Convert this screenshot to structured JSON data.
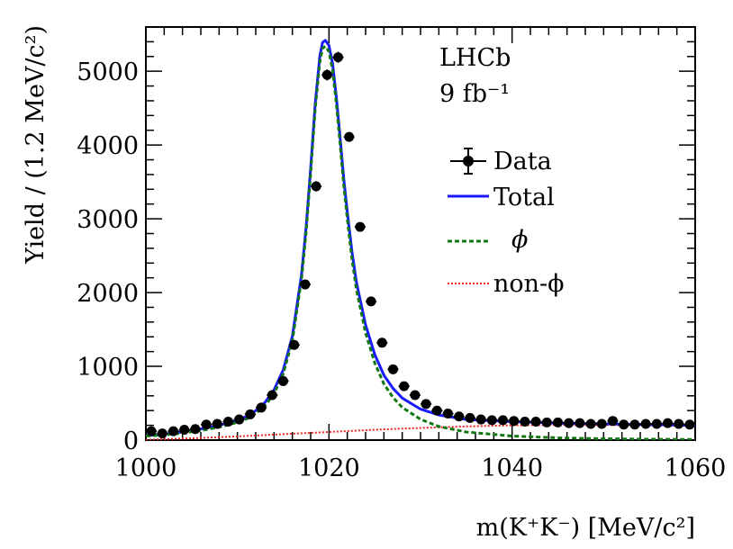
{
  "chart_data": {
    "type": "scatter",
    "title": "",
    "xlabel": "m(K⁺K⁻) [MeV/c²]",
    "ylabel": "Yield / (1.2 MeV/c²)",
    "xlim": [
      1000,
      1060
    ],
    "ylim": [
      0,
      5600
    ],
    "x_ticks": [
      1000,
      1020,
      1040,
      1060
    ],
    "y_ticks": [
      0,
      1000,
      2000,
      3000,
      4000,
      5000
    ],
    "experiment_label": "LHCb",
    "luminosity_label": "9 fb⁻¹",
    "legend": {
      "placement": "top-right",
      "entries": [
        {
          "key": "data",
          "label": "Data"
        },
        {
          "key": "total",
          "label": "Total"
        },
        {
          "key": "phi",
          "label": "ϕ"
        },
        {
          "key": "nonphi",
          "label": "non-ϕ"
        }
      ]
    },
    "series": [
      {
        "name": "Data",
        "style": "points-with-errors",
        "color": "#000000",
        "x": [
          1000.6,
          1001.8,
          1003.0,
          1004.2,
          1005.4,
          1006.6,
          1007.8,
          1009.0,
          1010.2,
          1011.4,
          1012.6,
          1013.8,
          1015.0,
          1016.2,
          1017.4,
          1018.6,
          1019.8,
          1021.0,
          1022.2,
          1023.4,
          1024.6,
          1025.8,
          1027.0,
          1028.2,
          1029.4,
          1030.6,
          1031.8,
          1033.0,
          1034.2,
          1035.4,
          1036.6,
          1037.8,
          1039.0,
          1040.2,
          1041.4,
          1042.6,
          1043.8,
          1045.0,
          1046.2,
          1047.4,
          1048.6,
          1049.8,
          1051.0,
          1052.2,
          1053.4,
          1054.6,
          1055.8,
          1057.0,
          1058.2,
          1059.4
        ],
        "y": [
          120,
          90,
          120,
          140,
          150,
          210,
          220,
          250,
          280,
          350,
          440,
          610,
          800,
          1290,
          2110,
          3440,
          4950,
          5190,
          4110,
          2890,
          1880,
          1320,
          960,
          730,
          610,
          490,
          400,
          360,
          320,
          300,
          280,
          270,
          270,
          260,
          250,
          250,
          240,
          240,
          230,
          230,
          220,
          220,
          260,
          210,
          210,
          220,
          220,
          230,
          220,
          210
        ],
        "yerr": [
          20,
          18,
          20,
          22,
          22,
          25,
          26,
          27,
          28,
          32,
          35,
          40,
          45,
          55,
          65,
          70,
          75,
          75,
          65,
          55,
          45,
          40,
          35,
          30,
          28,
          25,
          22,
          21,
          20,
          20,
          19,
          19,
          19,
          18,
          18,
          18,
          18,
          18,
          17,
          17,
          17,
          17,
          18,
          17,
          17,
          17,
          17,
          17,
          17,
          17
        ]
      },
      {
        "name": "Total",
        "style": "line",
        "color": "#1a1aff",
        "x": [
          1000,
          1002,
          1004,
          1006,
          1008,
          1010,
          1011,
          1012,
          1013,
          1014,
          1015,
          1016,
          1017,
          1017.5,
          1018,
          1018.5,
          1019,
          1019.3,
          1019.6,
          1020,
          1020.4,
          1020.8,
          1021.2,
          1021.6,
          1022,
          1022.5,
          1023,
          1024,
          1025,
          1026,
          1027,
          1028,
          1030,
          1032,
          1035,
          1040,
          1045,
          1050,
          1055,
          1060
        ],
        "y": [
          60,
          80,
          110,
          150,
          200,
          270,
          320,
          400,
          510,
          680,
          950,
          1410,
          2240,
          2880,
          3690,
          4570,
          5210,
          5390,
          5420,
          5350,
          5100,
          4650,
          4130,
          3560,
          3090,
          2560,
          2140,
          1560,
          1160,
          880,
          700,
          570,
          420,
          340,
          280,
          250,
          230,
          220,
          210,
          200
        ]
      },
      {
        "name": "ϕ",
        "style": "dashed",
        "color": "#117711",
        "x": [
          1000,
          1002,
          1004,
          1006,
          1008,
          1010,
          1011,
          1012,
          1013,
          1014,
          1015,
          1016,
          1017,
          1017.5,
          1018,
          1018.5,
          1019,
          1019.3,
          1019.6,
          1020,
          1020.4,
          1020.8,
          1021.2,
          1021.6,
          1022,
          1022.5,
          1023,
          1024,
          1025,
          1026,
          1027,
          1028,
          1030,
          1032,
          1035,
          1040,
          1045,
          1050,
          1055,
          1060
        ],
        "y": [
          55,
          70,
          95,
          130,
          175,
          240,
          285,
          360,
          465,
          630,
          895,
          1350,
          2175,
          2812,
          3620,
          4496,
          5133,
          5311,
          5339,
          5267,
          5014,
          4562,
          4039,
          3467,
          2995,
          2462,
          2038,
          1452,
          1046,
          762,
          577,
          443,
          282,
          184,
          110,
          55,
          30,
          18,
          12,
          8
        ]
      },
      {
        "name": "non-ϕ",
        "style": "dotted",
        "color": "#ee2222",
        "x": [
          1000,
          1005,
          1010,
          1015,
          1020,
          1025,
          1030,
          1035,
          1040,
          1045,
          1050,
          1055,
          1060
        ],
        "y": [
          5,
          25,
          50,
          80,
          110,
          140,
          165,
          185,
          200,
          205,
          205,
          200,
          195
        ]
      }
    ]
  }
}
